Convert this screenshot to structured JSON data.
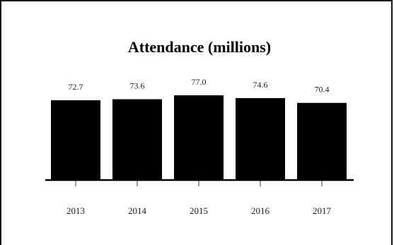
{
  "chart_data": {
    "type": "bar",
    "title": "Attendance (millions)",
    "categories": [
      "2013",
      "2014",
      "2015",
      "2016",
      "2017"
    ],
    "values": [
      72.7,
      73.6,
      77.0,
      74.6,
      70.4
    ],
    "value_labels": [
      "72.7",
      "73.6",
      "77.0",
      "74.6",
      "70.4"
    ],
    "xlabel": "",
    "ylabel": "",
    "ylim": [
      0,
      80
    ],
    "grid": false,
    "bar_color": "#000000"
  }
}
